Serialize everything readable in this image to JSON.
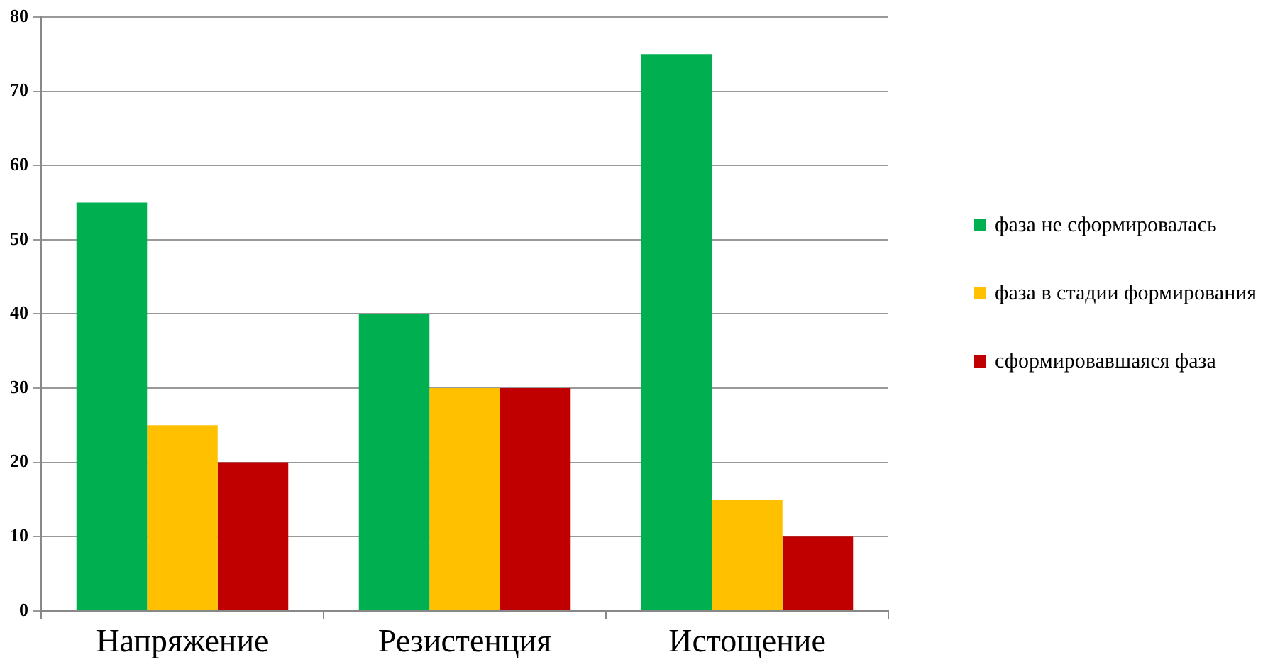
{
  "chart_data": {
    "type": "bar",
    "categories": [
      "Напряжение",
      "Резистенция",
      "Истощение"
    ],
    "series": [
      {
        "name": "фаза не сформировалась",
        "color": "#00b050",
        "values": [
          55,
          40,
          75
        ]
      },
      {
        "name": "фаза в стадии формирования",
        "color": "#ffc000",
        "values": [
          25,
          30,
          15
        ]
      },
      {
        "name": "сформировавшаяся фаза",
        "color": "#c00000",
        "values": [
          20,
          30,
          10
        ]
      }
    ],
    "ylim": [
      0,
      80
    ],
    "yticks": [
      0,
      10,
      20,
      30,
      40,
      50,
      60,
      70,
      80
    ],
    "grid": "y",
    "legend": "right"
  }
}
